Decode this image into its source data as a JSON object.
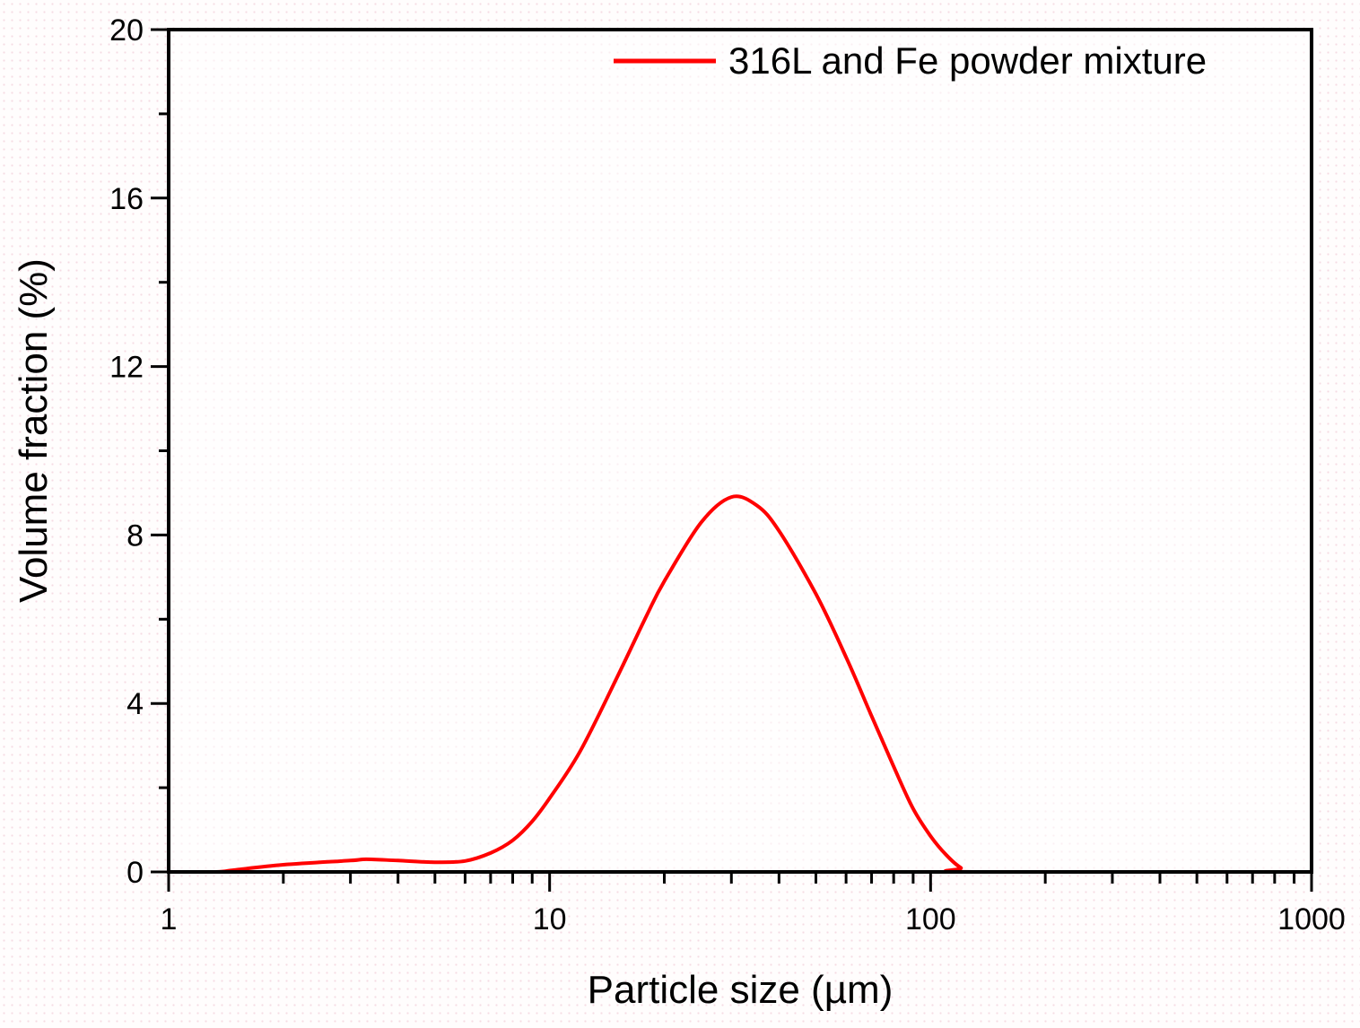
{
  "chart_data": {
    "type": "line",
    "title": "",
    "xlabel": "Particle size (µm)",
    "ylabel": "Volume fraction (%)",
    "xscale": "log",
    "xlim": [
      1,
      1000
    ],
    "ylim": [
      0,
      20
    ],
    "grid": false,
    "legend_position": "upper right",
    "x_ticks": [
      1,
      10,
      100,
      1000
    ],
    "x_tick_labels": [
      "1",
      "10",
      "100",
      "1000"
    ],
    "y_ticks": [
      0,
      4,
      8,
      12,
      16,
      20
    ],
    "y_tick_labels": [
      "0",
      "4",
      "8",
      "12",
      "16",
      "20"
    ],
    "series": [
      {
        "name": "316L and Fe powder mixture",
        "color": "#ff0000",
        "x": [
          1.0,
          1.33,
          1.5,
          2,
          3,
          3.3,
          4,
          5,
          6,
          7,
          8,
          9,
          10,
          12,
          15,
          18,
          20,
          25,
          30,
          35,
          40,
          50,
          60,
          70,
          80,
          90,
          100,
          110,
          120,
          130,
          1000
        ],
        "y": [
          0,
          0,
          0.05,
          0.17,
          0.27,
          0.3,
          0.27,
          0.23,
          0.26,
          0.45,
          0.75,
          1.2,
          1.75,
          2.85,
          4.6,
          6.1,
          6.9,
          8.3,
          8.9,
          8.7,
          8.1,
          6.6,
          5.1,
          3.7,
          2.5,
          1.5,
          0.85,
          0.4,
          0.1,
          0,
          0
        ]
      }
    ]
  },
  "labels": {
    "xlabel": "Particle size (µm)",
    "ylabel": "Volume fraction (%)",
    "legend": "316L and Fe powder mixture"
  },
  "colors": {
    "series": "#ff0000",
    "axis": "#000000"
  }
}
